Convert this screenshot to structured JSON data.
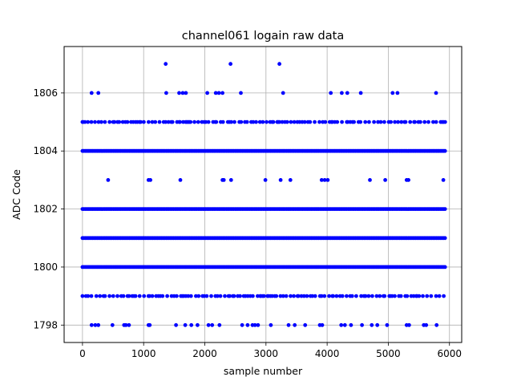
{
  "chart_data": {
    "type": "scatter",
    "title": "channel061 logain raw data",
    "xlabel": "sample number",
    "ylabel": "ADC Code",
    "xlim": [
      -300,
      6200
    ],
    "ylim": [
      1797.4,
      1807.6
    ],
    "xticks": [
      0,
      1000,
      2000,
      3000,
      4000,
      5000,
      6000
    ],
    "yticks": [
      1798,
      1800,
      1802,
      1804,
      1806
    ],
    "grid": true,
    "marker_color": "#0000ff",
    "sample_range": [
      0,
      5930
    ],
    "series": [
      {
        "levels": [
          {
            "y": 1798,
            "density": "sparse",
            "samples": [
              150,
              210,
              260,
              490,
              680,
              710,
              760,
              1080,
              1100,
              1530,
              1680,
              1780,
              1880,
              2060,
              2120,
              2240,
              2610,
              2700,
              2780,
              2820,
              2870,
              3080,
              3370,
              3470,
              3640,
              3880,
              3920,
              4230,
              4290,
              4390,
              4570,
              4730,
              4820,
              4980,
              5300,
              5340,
              5580,
              5620,
              5790
            ]
          },
          {
            "y": 1799,
            "density": "medium"
          },
          {
            "y": 1800,
            "density": "dense"
          },
          {
            "y": 1801,
            "density": "dense"
          },
          {
            "y": 1802,
            "density": "dense"
          },
          {
            "y": 1803,
            "density": "sparse",
            "samples": [
              420,
              1080,
              1110,
              1600,
              2290,
              2310,
              2430,
              2990,
              3240,
              3400,
              3910,
              3960,
              4010,
              4700,
              4950,
              5300,
              5330,
              5900
            ]
          },
          {
            "y": 1804,
            "density": "dense"
          },
          {
            "y": 1805,
            "density": "medium"
          },
          {
            "y": 1806,
            "density": "sparse",
            "samples": [
              150,
              260,
              1370,
              1580,
              1640,
              1690,
              2040,
              2180,
              2230,
              2290,
              2590,
              3280,
              4060,
              4240,
              4330,
              4550,
              5070,
              5150,
              5780
            ]
          },
          {
            "y": 1807,
            "density": "sparse",
            "samples": [
              1360,
              2420,
              3220
            ]
          }
        ]
      }
    ]
  }
}
